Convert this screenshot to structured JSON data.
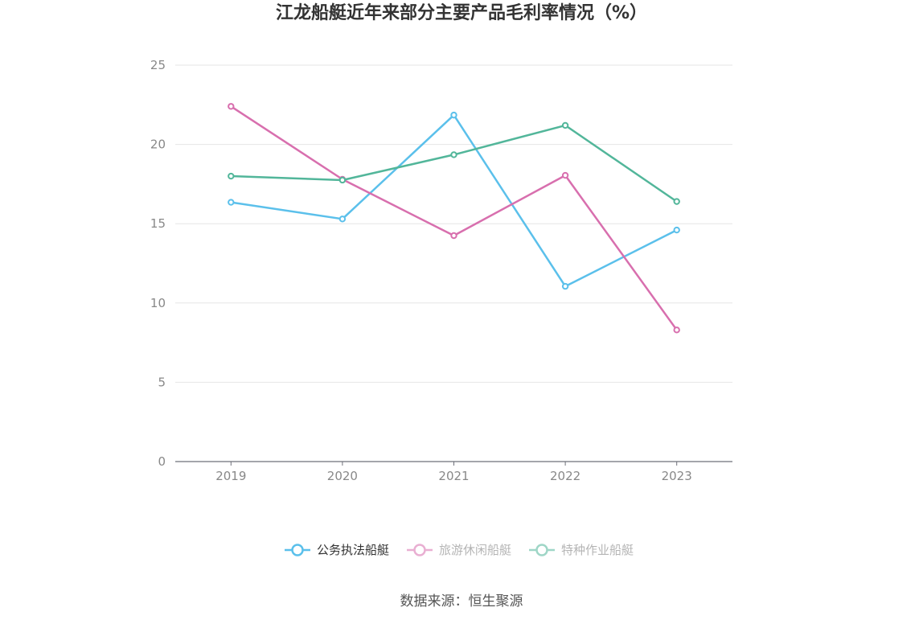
{
  "chart_data": {
    "type": "line",
    "title": "江龙船艇近年来部分主要产品毛利率情况（%）",
    "categories": [
      "2019",
      "2020",
      "2021",
      "2022",
      "2023"
    ],
    "series": [
      {
        "name": "公务执法船艇",
        "values": [
          16.35,
          15.3,
          21.85,
          11.05,
          14.6
        ],
        "color": "#5bc0eb"
      },
      {
        "name": "旅游休闲船艇",
        "values": [
          22.4,
          17.8,
          14.25,
          18.05,
          8.3
        ],
        "color": "#d86fae"
      },
      {
        "name": "特种作业船艇",
        "values": [
          18.0,
          17.75,
          19.35,
          21.2,
          16.4
        ],
        "color": "#52b69a"
      }
    ],
    "ylim": [
      0,
      25
    ],
    "yticks": [
      0,
      5,
      10,
      15,
      20,
      25
    ],
    "grid": true,
    "legend_position": "bottom-center",
    "legend_active": "公务执法船艇",
    "source": "数据来源：恒生聚源"
  }
}
